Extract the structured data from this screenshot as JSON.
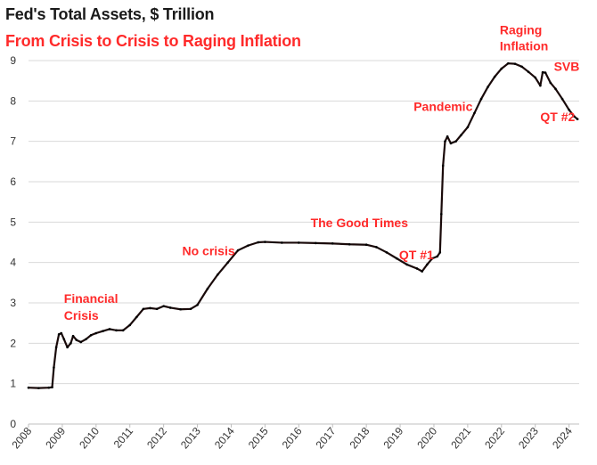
{
  "title": "Fed's Total Assets, $ Trillion",
  "subtitle": "From Crisis to Crisis to Raging Inflation",
  "colors": {
    "line": "#1a0a0a",
    "annotation": "#ff2a2a",
    "grid": "#d9d9d9",
    "title": "#1a1a1a"
  },
  "chart_data": {
    "type": "line",
    "title": "Fed's Total Assets, $ Trillion",
    "subtitle": "From Crisis to Crisis to Raging Inflation",
    "xlabel": "",
    "ylabel": "",
    "xlim": [
      2008,
      2024.3
    ],
    "ylim": [
      0,
      9
    ],
    "grid": true,
    "x_ticks": [
      "2008",
      "2009",
      "2010",
      "2011",
      "2012",
      "2013",
      "2014",
      "2015",
      "2016",
      "2017",
      "2018",
      "2019",
      "2020",
      "2021",
      "2022",
      "2023",
      "2024"
    ],
    "y_ticks": [
      "0",
      "1",
      "2",
      "3",
      "4",
      "5",
      "6",
      "7",
      "8",
      "9"
    ],
    "series": [
      {
        "name": "Fed's Total Assets",
        "points": [
          [
            2008.0,
            0.9
          ],
          [
            2008.3,
            0.89
          ],
          [
            2008.6,
            0.9
          ],
          [
            2008.7,
            0.91
          ],
          [
            2008.75,
            1.4
          ],
          [
            2008.82,
            1.9
          ],
          [
            2008.9,
            2.22
          ],
          [
            2008.97,
            2.25
          ],
          [
            2009.05,
            2.1
          ],
          [
            2009.15,
            1.9
          ],
          [
            2009.25,
            2.0
          ],
          [
            2009.32,
            2.18
          ],
          [
            2009.42,
            2.08
          ],
          [
            2009.55,
            2.03
          ],
          [
            2009.7,
            2.1
          ],
          [
            2009.85,
            2.2
          ],
          [
            2010.0,
            2.25
          ],
          [
            2010.2,
            2.3
          ],
          [
            2010.4,
            2.35
          ],
          [
            2010.6,
            2.32
          ],
          [
            2010.8,
            2.32
          ],
          [
            2011.0,
            2.45
          ],
          [
            2011.2,
            2.65
          ],
          [
            2011.4,
            2.85
          ],
          [
            2011.6,
            2.87
          ],
          [
            2011.8,
            2.85
          ],
          [
            2012.0,
            2.92
          ],
          [
            2012.2,
            2.88
          ],
          [
            2012.5,
            2.84
          ],
          [
            2012.8,
            2.85
          ],
          [
            2013.0,
            2.95
          ],
          [
            2013.3,
            3.35
          ],
          [
            2013.6,
            3.7
          ],
          [
            2013.9,
            4.0
          ],
          [
            2014.2,
            4.3
          ],
          [
            2014.5,
            4.42
          ],
          [
            2014.8,
            4.5
          ],
          [
            2015.0,
            4.51
          ],
          [
            2015.5,
            4.49
          ],
          [
            2016.0,
            4.49
          ],
          [
            2016.5,
            4.48
          ],
          [
            2017.0,
            4.47
          ],
          [
            2017.5,
            4.45
          ],
          [
            2018.0,
            4.44
          ],
          [
            2018.3,
            4.38
          ],
          [
            2018.6,
            4.25
          ],
          [
            2018.9,
            4.1
          ],
          [
            2019.2,
            3.95
          ],
          [
            2019.5,
            3.85
          ],
          [
            2019.65,
            3.78
          ],
          [
            2019.8,
            3.95
          ],
          [
            2019.95,
            4.1
          ],
          [
            2020.1,
            4.15
          ],
          [
            2020.18,
            4.25
          ],
          [
            2020.22,
            5.2
          ],
          [
            2020.27,
            6.4
          ],
          [
            2020.33,
            7.0
          ],
          [
            2020.4,
            7.12
          ],
          [
            2020.5,
            6.95
          ],
          [
            2020.65,
            7.0
          ],
          [
            2020.8,
            7.15
          ],
          [
            2021.0,
            7.35
          ],
          [
            2021.2,
            7.7
          ],
          [
            2021.4,
            8.05
          ],
          [
            2021.6,
            8.35
          ],
          [
            2021.8,
            8.6
          ],
          [
            2022.0,
            8.8
          ],
          [
            2022.2,
            8.93
          ],
          [
            2022.4,
            8.92
          ],
          [
            2022.6,
            8.85
          ],
          [
            2022.8,
            8.72
          ],
          [
            2023.0,
            8.58
          ],
          [
            2023.15,
            8.38
          ],
          [
            2023.22,
            8.71
          ],
          [
            2023.3,
            8.7
          ],
          [
            2023.45,
            8.45
          ],
          [
            2023.6,
            8.3
          ],
          [
            2023.8,
            8.05
          ],
          [
            2024.0,
            7.78
          ],
          [
            2024.15,
            7.62
          ],
          [
            2024.25,
            7.55
          ]
        ]
      }
    ],
    "annotations": [
      {
        "text": "Financial",
        "x": 2009.05,
        "y": 3.0
      },
      {
        "text": "Crisis",
        "x": 2009.05,
        "y": 2.58
      },
      {
        "text": "No crisis",
        "x": 2012.55,
        "y": 4.18
      },
      {
        "text": "The Good Times",
        "x": 2016.35,
        "y": 4.88
      },
      {
        "text": "QT #1",
        "x": 2018.97,
        "y": 4.08
      },
      {
        "text": "Pandemic",
        "x": 2019.4,
        "y": 7.75
      },
      {
        "text": "Raging",
        "x": 2021.95,
        "y": 9.65
      },
      {
        "text": "Inflation",
        "x": 2021.95,
        "y": 9.25
      },
      {
        "text": "SVB",
        "x": 2023.55,
        "y": 8.75
      },
      {
        "text": "QT #2",
        "x": 2023.15,
        "y": 7.5
      }
    ]
  }
}
